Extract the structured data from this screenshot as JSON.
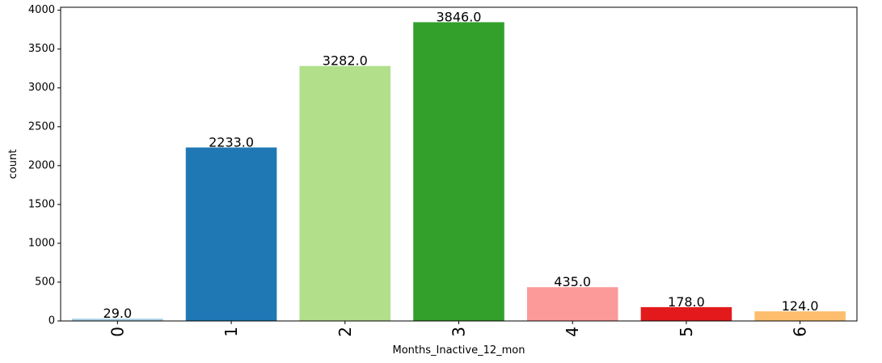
{
  "chart_data": {
    "type": "bar",
    "title": "",
    "xlabel": "Months_Inactive_12_mon",
    "ylabel": "count",
    "categories": [
      "0",
      "1",
      "2",
      "3",
      "4",
      "5",
      "6"
    ],
    "values": [
      29,
      2233,
      3282,
      3846,
      435,
      178,
      124
    ],
    "value_labels": [
      "29.0",
      "2233.0",
      "3282.0",
      "3846.0",
      "435.0",
      "178.0",
      "124.0"
    ],
    "colors": [
      "#a6cee3",
      "#1f78b4",
      "#b2df8a",
      "#33a02c",
      "#fb9a99",
      "#e31a1c",
      "#fdbf6f"
    ],
    "ylim": [
      0,
      4038
    ],
    "yticks": [
      0,
      500,
      1000,
      1500,
      2000,
      2500,
      3000,
      3500,
      4000
    ],
    "grid": false,
    "legend": "none"
  }
}
